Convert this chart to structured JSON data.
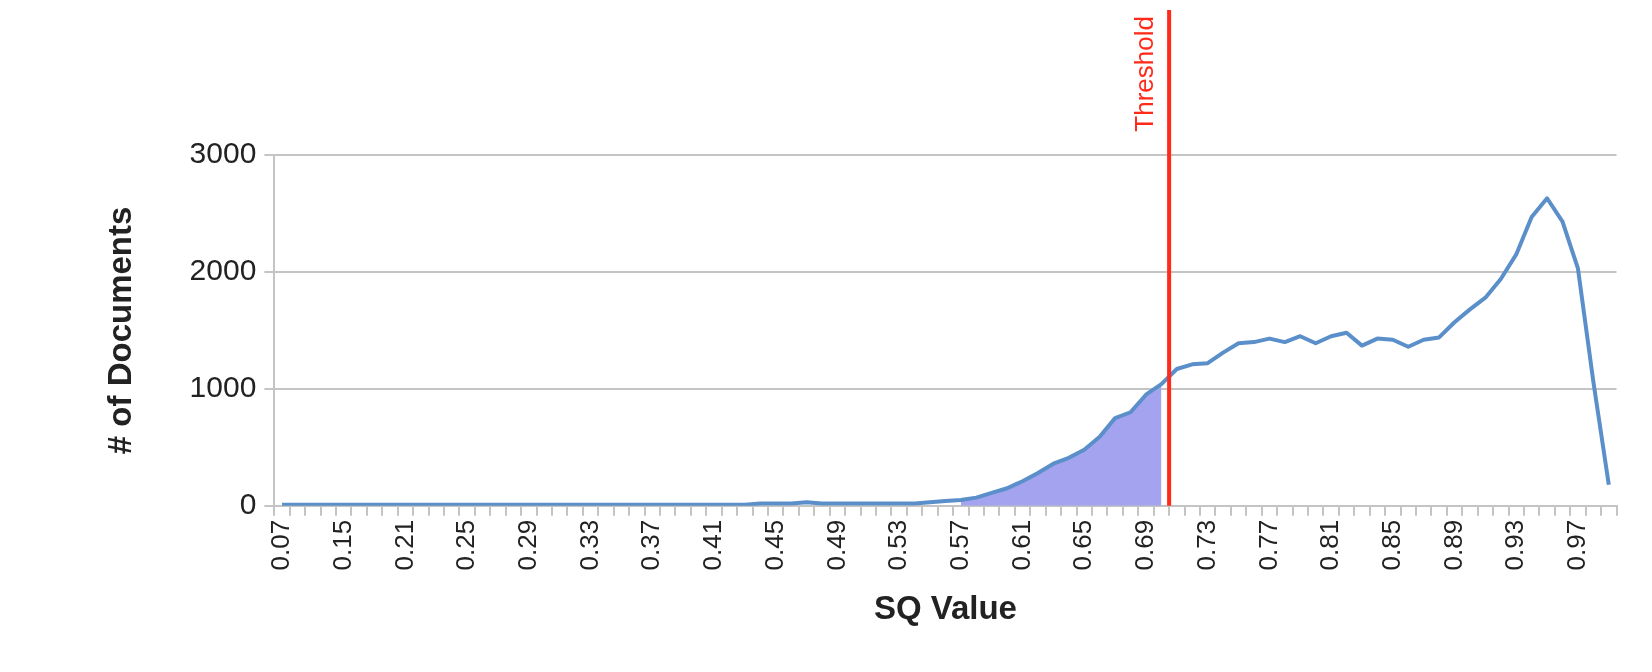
{
  "chart_data": {
    "type": "line",
    "xlabel": "SQ Value",
    "ylabel": "# of Documents",
    "categories": [
      "0.07",
      null,
      null,
      null,
      "0.15",
      null,
      null,
      null,
      "0.21",
      null,
      null,
      null,
      "0.25",
      null,
      null,
      null,
      "0.29",
      null,
      null,
      null,
      "0.33",
      null,
      null,
      null,
      "0.37",
      null,
      null,
      null,
      "0.41",
      null,
      null,
      null,
      "0.45",
      null,
      null,
      null,
      "0.49",
      null,
      null,
      null,
      "0.53",
      null,
      null,
      null,
      "0.57",
      null,
      null,
      null,
      "0.61",
      null,
      null,
      null,
      "0.65",
      null,
      null,
      null,
      "0.69",
      null,
      null,
      null,
      "0.73",
      null,
      null,
      null,
      "0.77",
      null,
      null,
      null,
      "0.81",
      null,
      null,
      null,
      "0.85",
      null,
      null,
      null,
      "0.89",
      null,
      null,
      null,
      "0.93",
      null,
      null,
      null,
      "0.97",
      null,
      null
    ],
    "series": [
      {
        "color": "#5b8fc9",
        "values": [
          10,
          10,
          10,
          10,
          10,
          10,
          10,
          10,
          10,
          10,
          10,
          10,
          10,
          10,
          10,
          10,
          10,
          10,
          10,
          10,
          10,
          10,
          10,
          10,
          10,
          10,
          10,
          10,
          10,
          10,
          10,
          20,
          20,
          20,
          30,
          20,
          20,
          20,
          20,
          20,
          20,
          20,
          30,
          40,
          50,
          70,
          110,
          150,
          210,
          280,
          360,
          410,
          480,
          590,
          750,
          800,
          950,
          1040,
          1170,
          1210,
          1220,
          1310,
          1390,
          1400,
          1430,
          1400,
          1450,
          1390,
          1450,
          1480,
          1370,
          1430,
          1420,
          1360,
          1420,
          1440,
          1570,
          1680,
          1780,
          1940,
          2150,
          2470,
          2630,
          2430,
          2030,
          1060,
          180
        ]
      },
      {
        "type": "area",
        "color": "#a3a3f0",
        "values": [
          null,
          null,
          null,
          null,
          null,
          null,
          null,
          null,
          null,
          null,
          null,
          null,
          null,
          null,
          null,
          null,
          null,
          null,
          null,
          null,
          null,
          null,
          null,
          null,
          null,
          null,
          null,
          null,
          null,
          null,
          null,
          null,
          null,
          null,
          null,
          null,
          null,
          null,
          null,
          null,
          null,
          null,
          null,
          null,
          50,
          70,
          110,
          150,
          210,
          280,
          360,
          410,
          480,
          590,
          750,
          800,
          950,
          1040,
          null,
          null,
          null,
          null,
          null,
          null,
          null,
          null,
          null,
          null,
          null,
          null,
          null,
          null,
          null,
          null,
          null,
          null,
          null,
          null,
          null,
          null,
          null,
          null,
          null,
          null,
          null,
          null,
          null
        ]
      }
    ],
    "ylim": [
      0,
      3000
    ],
    "yticks": [
      0,
      1000,
      2000,
      3000
    ],
    "grid": "y",
    "legend": false,
    "annotations": [
      "Threshold"
    ]
  }
}
